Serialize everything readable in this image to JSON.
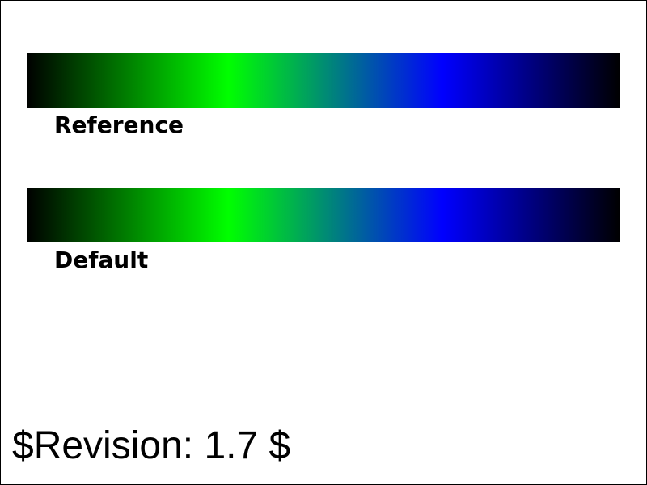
{
  "gradients": [
    {
      "label": "Reference",
      "stops": [
        "#000000",
        "#00ff00",
        "#0000ff",
        "#000000"
      ]
    },
    {
      "label": "Default",
      "stops": [
        "#000000",
        "#00ff00",
        "#0000ff",
        "#000000"
      ]
    }
  ],
  "revision": "$Revision: 1.7 $"
}
